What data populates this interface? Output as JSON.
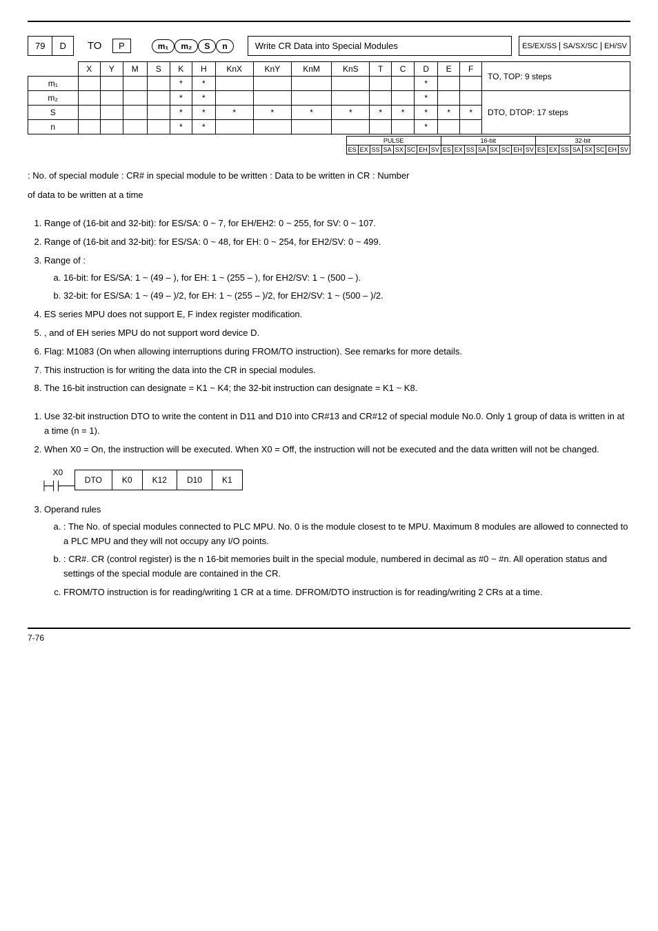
{
  "header": {
    "api": "79",
    "d_flag": "D",
    "mnemonic": "TO",
    "p_flag": "P",
    "operands": [
      "m₁",
      "m₂",
      "S",
      "n"
    ],
    "function": "Write CR Data into Special Modules",
    "models": [
      "ES/EX/SS",
      "SA/SX/SC",
      "EH/SV"
    ]
  },
  "table": {
    "cols": [
      "X",
      "Y",
      "M",
      "S",
      "K",
      "H",
      "KnX",
      "KnY",
      "KnM",
      "KnS",
      "T",
      "C",
      "D",
      "E",
      "F"
    ],
    "rows": [
      {
        "label": "m₁",
        "cells": [
          "",
          "",
          "",
          "",
          "*",
          "*",
          "",
          "",
          "",
          "",
          "",
          "",
          "*",
          "",
          ""
        ]
      },
      {
        "label": "m₂",
        "cells": [
          "",
          "",
          "",
          "",
          "*",
          "*",
          "",
          "",
          "",
          "",
          "",
          "",
          "*",
          "",
          ""
        ]
      },
      {
        "label": "S",
        "cells": [
          "",
          "",
          "",
          "",
          "*",
          "*",
          "*",
          "*",
          "*",
          "*",
          "*",
          "*",
          "*",
          "*",
          "*"
        ]
      },
      {
        "label": "n",
        "cells": [
          "",
          "",
          "",
          "",
          "*",
          "*",
          "",
          "",
          "",
          "",
          "",
          "",
          "*",
          "",
          ""
        ]
      }
    ],
    "steps": [
      "TO, TOP: 9 steps",
      "DTO, DTOP: 17 steps"
    ]
  },
  "bit_table": {
    "headers": [
      "PULSE",
      "16-bit",
      "32-bit"
    ],
    "cells_row": [
      "ES",
      "EX",
      "SS",
      "SA",
      "SX",
      "SC",
      "EH",
      "SV",
      "ES",
      "EX",
      "SS",
      "SA",
      "SX",
      "SC",
      "EH",
      "SV",
      "ES",
      "EX",
      "SS",
      "SA",
      "SX",
      "SC",
      "EH",
      "SV"
    ]
  },
  "operand_desc": {
    "line1": ": No. of special module            : CR# in special module to be written          : Data to be written in CR          : Number",
    "line2": "of data to be written at a time"
  },
  "explanations": [
    "Range of       (16-bit and 32-bit): for ES/SA: 0 ~ 7, for EH/EH2: 0 ~ 255, for SV: 0 ~ 107.",
    "Range of       (16-bit and 32-bit): for ES/SA: 0 ~ 48, for EH: 0 ~ 254, for EH2/SV: 0 ~ 499.",
    "Range of    :",
    "ES series MPU does not support E, F index register modification.",
    "     ,        and      of EH series MPU do not support word device D.",
    "Flag: M1083 (On when allowing interruptions during FROM/TO instruction). See remarks for more details.",
    "This instruction is for writing the data into the CR in special modules.",
    "The 16-bit instruction can designate      = K1 ~ K4; the 32-bit instruction can designate      = K1 ~ K8."
  ],
  "range_sub": [
    "16-bit: for ES/SA: 1 ~ (49 –       ), for EH: 1 ~ (255 –       ), for EH2/SV: 1 ~ (500 –       ).",
    "32-bit: for ES/SA: 1 ~ (49 –       )/2, for EH: 1 ~ (255 –       )/2, for EH2/SV: 1 ~ (500 –       )/2."
  ],
  "program_ex": [
    "Use 32-bit instruction DTO to write the content in D11 and D10 into CR#13 and CR#12 of special module No.0. Only 1 group of data is written in at a time (n = 1).",
    "When X0 = On, the instruction will be executed. When X0 = Off, the instruction will not be executed and the data written will not be changed."
  ],
  "ladder": {
    "contact": "X0",
    "cells": [
      "DTO",
      "K0",
      "K12",
      "D10",
      "K1"
    ]
  },
  "operand_rules_title": "Operand rules",
  "operand_rules": [
    " : The No. of special modules connected to PLC MPU. No. 0 is the module closest to te MPU. Maximum 8 modules are allowed to connected to a PLC MPU and they will not occupy any I/O points.",
    " : CR#. CR (control register) is the n 16-bit memories built in the special module, numbered in decimal as #0 ~ #n. All operation status and settings of the special module are contained in the CR.",
    "FROM/TO instruction is for reading/writing 1 CR at a time. DFROM/DTO instruction is for reading/writing 2 CRs at a time."
  ],
  "footer": "7-76"
}
